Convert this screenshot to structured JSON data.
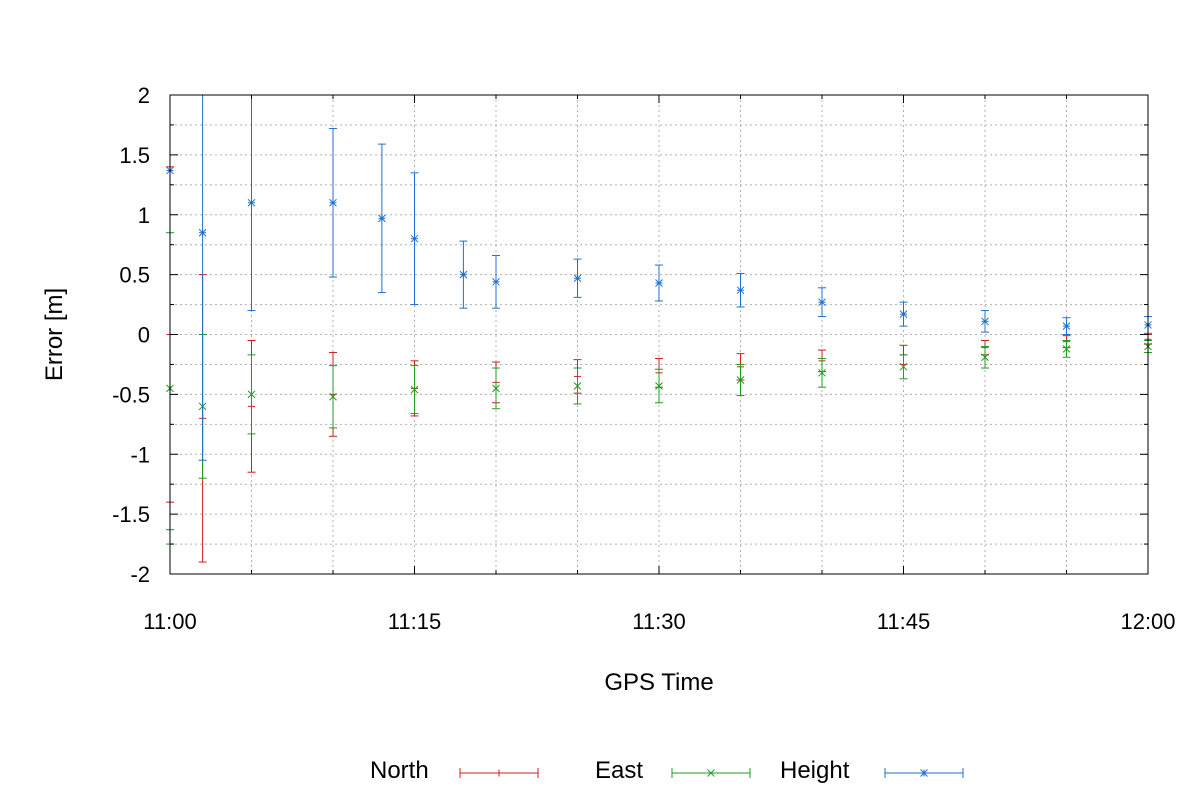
{
  "chart_data": {
    "type": "scatter",
    "title": "",
    "xlabel": "GPS Time",
    "ylabel": "Error [m]",
    "xlim": [
      "11:00",
      "12:00"
    ],
    "ylim": [
      -2,
      2
    ],
    "x_ticks": [
      "11:00",
      "11:15",
      "11:30",
      "11:45",
      "12:00"
    ],
    "y_ticks": [
      "-2",
      "-1.5",
      "-1",
      "-0.5",
      "0",
      "0.5",
      "1",
      "1.5",
      "2"
    ],
    "grid": true,
    "legend_position": "bottom",
    "error_bars": true,
    "series": [
      {
        "name": "North",
        "color": "#cc1f1f",
        "marker": "plus",
        "points": [
          {
            "x": "11:00",
            "y": 0.0,
            "err": 1.4
          },
          {
            "x": "11:02",
            "y": -0.7,
            "err": 1.2
          },
          {
            "x": "11:05",
            "y": -0.6,
            "err": 0.55
          },
          {
            "x": "11:10",
            "y": -0.5,
            "err": 0.35
          },
          {
            "x": "11:15",
            "y": -0.45,
            "err": 0.23
          },
          {
            "x": "11:20",
            "y": -0.4,
            "err": 0.17
          },
          {
            "x": "11:25",
            "y": -0.35,
            "err": 0.14
          },
          {
            "x": "11:30",
            "y": -0.32,
            "err": 0.12
          },
          {
            "x": "11:35",
            "y": -0.27,
            "err": 0.11
          },
          {
            "x": "11:40",
            "y": -0.22,
            "err": 0.09
          },
          {
            "x": "11:45",
            "y": -0.17,
            "err": 0.08
          },
          {
            "x": "11:50",
            "y": -0.11,
            "err": 0.06
          },
          {
            "x": "11:55",
            "y": -0.06,
            "err": 0.05
          },
          {
            "x": "12:00",
            "y": -0.04,
            "err": 0.04
          }
        ]
      },
      {
        "name": "East",
        "color": "#1c9e1c",
        "marker": "x",
        "points": [
          {
            "x": "11:00",
            "y": -0.45,
            "err": 1.3
          },
          {
            "x": "11:02",
            "y": -0.6,
            "err": 0.6
          },
          {
            "x": "11:05",
            "y": -0.5,
            "err": 0.33
          },
          {
            "x": "11:10",
            "y": -0.52,
            "err": 0.26
          },
          {
            "x": "11:15",
            "y": -0.46,
            "err": 0.2
          },
          {
            "x": "11:20",
            "y": -0.45,
            "err": 0.17
          },
          {
            "x": "11:25",
            "y": -0.43,
            "err": 0.15
          },
          {
            "x": "11:30",
            "y": -0.43,
            "err": 0.14
          },
          {
            "x": "11:35",
            "y": -0.38,
            "err": 0.13
          },
          {
            "x": "11:40",
            "y": -0.32,
            "err": 0.12
          },
          {
            "x": "11:45",
            "y": -0.27,
            "err": 0.1
          },
          {
            "x": "11:50",
            "y": -0.19,
            "err": 0.09
          },
          {
            "x": "11:55",
            "y": -0.12,
            "err": 0.07
          },
          {
            "x": "12:00",
            "y": -0.1,
            "err": 0.05
          }
        ]
      },
      {
        "name": "Height",
        "color": "#1f6fd0",
        "marker": "star",
        "points": [
          {
            "x": "11:00",
            "y": 1.37,
            "err": 3.0
          },
          {
            "x": "11:02",
            "y": 0.85,
            "err": 1.9
          },
          {
            "x": "11:05",
            "y": 1.1,
            "err": 0.9
          },
          {
            "x": "11:10",
            "y": 1.1,
            "err": 0.62
          },
          {
            "x": "11:13",
            "y": 0.97,
            "err": 0.62
          },
          {
            "x": "11:15",
            "y": 0.8,
            "err": 0.55
          },
          {
            "x": "11:18",
            "y": 0.5,
            "err": 0.28
          },
          {
            "x": "11:20",
            "y": 0.44,
            "err": 0.22
          },
          {
            "x": "11:25",
            "y": 0.47,
            "err": 0.16
          },
          {
            "x": "11:30",
            "y": 0.43,
            "err": 0.15
          },
          {
            "x": "11:35",
            "y": 0.37,
            "err": 0.14
          },
          {
            "x": "11:40",
            "y": 0.27,
            "err": 0.12
          },
          {
            "x": "11:45",
            "y": 0.17,
            "err": 0.1
          },
          {
            "x": "11:50",
            "y": 0.11,
            "err": 0.09
          },
          {
            "x": "11:55",
            "y": 0.07,
            "err": 0.07
          },
          {
            "x": "12:00",
            "y": 0.08,
            "err": 0.07
          }
        ]
      }
    ]
  }
}
